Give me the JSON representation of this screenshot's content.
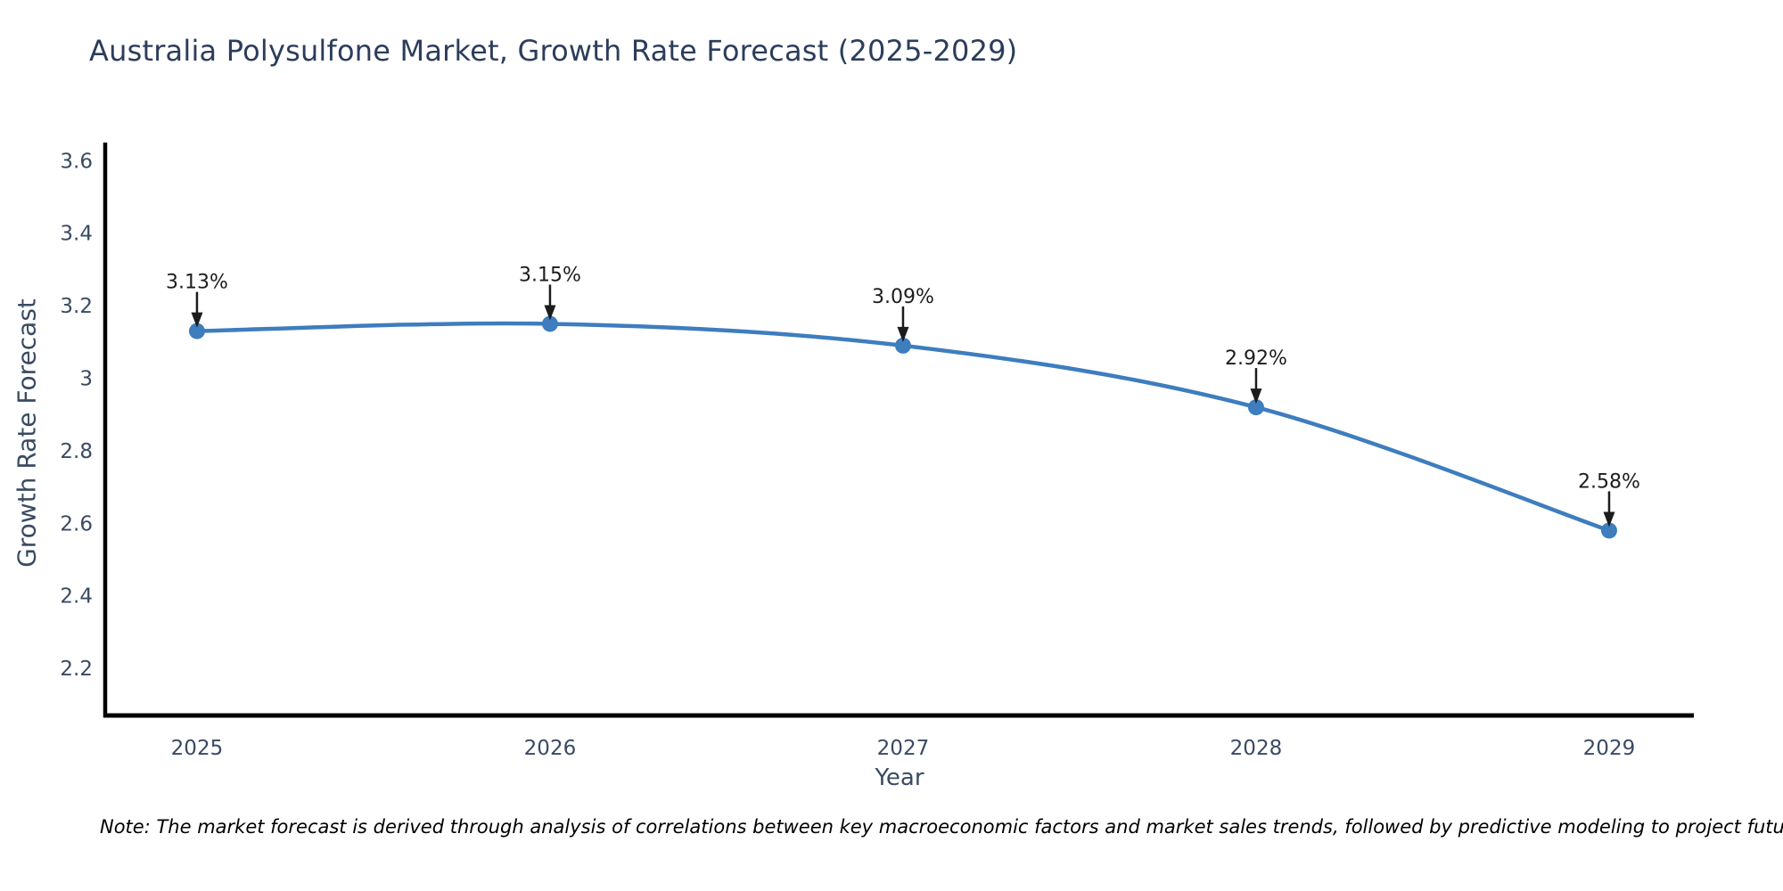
{
  "title": "Australia Polysulfone Market, Growth Rate Forecast (2025-2029)",
  "footnote": "Note: The market forecast is derived through analysis of correlations between key macroeconomic factors and market sales trends, followed by predictive modeling to project future sales",
  "chart_data": {
    "type": "line",
    "title": "Australia Polysulfone Market, Growth Rate Forecast (2025-2029)",
    "xlabel": "Year",
    "ylabel": "Growth Rate Forecast",
    "line_shape": "spline",
    "grid": false,
    "legend": "none",
    "x": [
      2025,
      2026,
      2027,
      2028,
      2029
    ],
    "x_tick_labels": [
      "2025",
      "2026",
      "2027",
      "2028",
      "2029"
    ],
    "ytick_values": [
      3.6,
      3.4,
      3.2,
      3.0,
      2.8,
      2.6,
      2.4,
      2.2
    ],
    "ytick_labels": [
      "3.6",
      "3.4",
      "3.2",
      "3",
      "2.8",
      "2.6",
      "2.4",
      "2.2"
    ],
    "xlim": [
      2024.74,
      2029.24
    ],
    "ylim": [
      2.07,
      3.65
    ],
    "series": [
      {
        "name": "Growth Rate Forecast",
        "values": [
          3.13,
          3.15,
          3.09,
          2.92,
          2.58
        ],
        "point_labels": [
          "3.13%",
          "3.15%",
          "3.09%",
          "2.92%",
          "2.58%"
        ]
      }
    ],
    "colors": {
      "line": "#3e7dbe",
      "marker": "#3e7dbe",
      "axis_line": "#000000",
      "annotation": "#1c1c1c",
      "title_text": "#2c3d5b",
      "axis_text": "#3a4a63",
      "background": "#ffffff"
    }
  }
}
